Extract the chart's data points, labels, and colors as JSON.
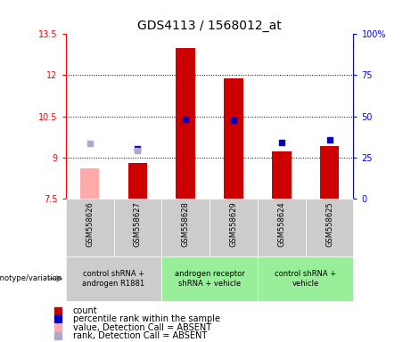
{
  "title": "GDS4113 / 1568012_at",
  "samples": [
    "GSM558626",
    "GSM558627",
    "GSM558628",
    "GSM558629",
    "GSM558624",
    "GSM558625"
  ],
  "bar_values": [
    null,
    8.8,
    13.0,
    11.9,
    9.2,
    9.4
  ],
  "bar_absent_values": [
    8.6,
    null,
    null,
    null,
    null,
    null
  ],
  "bar_color": "#cc0000",
  "bar_absent_color": "#ffaaaa",
  "rank_present": [
    null,
    9.3,
    10.4,
    10.35,
    9.55,
    9.65
  ],
  "rank_absent": [
    9.5,
    9.25,
    null,
    null,
    null,
    null
  ],
  "rank_present_color": "#0000cc",
  "rank_absent_color": "#aaaacc",
  "ylim": [
    7.5,
    13.5
  ],
  "yticks": [
    7.5,
    9.0,
    10.5,
    12.0,
    13.5
  ],
  "ytick_labels": [
    "7.5",
    "9",
    "10.5",
    "12",
    "13.5"
  ],
  "y2lim": [
    0,
    100
  ],
  "y2ticks": [
    0,
    25,
    50,
    75,
    100
  ],
  "y2tick_labels": [
    "0",
    "25",
    "50",
    "75",
    "100%"
  ],
  "groups": [
    {
      "label": "control shRNA +\nandrogen R1881",
      "samples_range": [
        0,
        1
      ],
      "color": "#cccccc"
    },
    {
      "label": "androgen receptor\nshRNA + vehicle",
      "samples_range": [
        2,
        3
      ],
      "color": "#99ee99"
    },
    {
      "label": "control shRNA +\nvehicle",
      "samples_range": [
        4,
        5
      ],
      "color": "#99ee99"
    }
  ],
  "legend_items": [
    {
      "label": "count",
      "color": "#cc0000"
    },
    {
      "label": "percentile rank within the sample",
      "color": "#0000cc"
    },
    {
      "label": "value, Detection Call = ABSENT",
      "color": "#ffaaaa"
    },
    {
      "label": "rank, Detection Call = ABSENT",
      "color": "#aaaacc"
    }
  ],
  "bar_width": 0.4,
  "genotype_label": "genotype/variation",
  "dotted_gridlines": [
    9.0,
    10.5,
    12.0
  ],
  "title_fontsize": 10,
  "tick_fontsize": 7,
  "sample_fontsize": 6,
  "group_fontsize": 6,
  "legend_fontsize": 7
}
